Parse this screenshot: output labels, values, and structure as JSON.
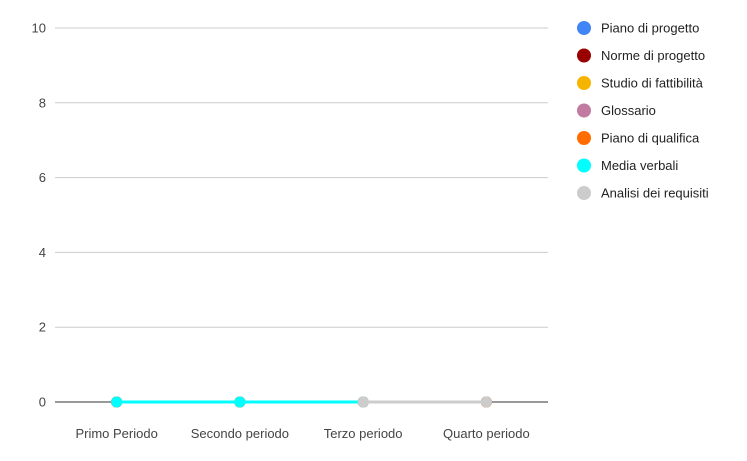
{
  "chart_data": {
    "type": "line",
    "title": "",
    "xlabel": "",
    "ylabel": "",
    "categories": [
      "Primo Periodo",
      "Secondo periodo",
      "Terzo periodo",
      "Quarto periodo"
    ],
    "ylim": [
      0,
      10
    ],
    "yticks": [
      0,
      2,
      4,
      6,
      8,
      10
    ],
    "grid": true,
    "legend_position": "right",
    "series": [
      {
        "name": "Piano di progetto",
        "color": "#4285f4",
        "values": [
          0,
          0,
          0,
          0
        ]
      },
      {
        "name": "Norme di progetto",
        "color": "#990000",
        "values": [
          0,
          0,
          0,
          0
        ]
      },
      {
        "name": "Studio di fattibilità",
        "color": "#f4b400",
        "values": [
          0,
          0,
          0,
          0
        ]
      },
      {
        "name": "Glossario",
        "color": "#c27ba0",
        "values": [
          0,
          0,
          0,
          0
        ]
      },
      {
        "name": "Piano di qualifica",
        "color": "#ff6d01",
        "values": [
          0,
          0,
          0,
          0
        ]
      },
      {
        "name": "Media verbali",
        "color": "#00ffff",
        "values": [
          0,
          0,
          0,
          null
        ]
      },
      {
        "name": "Analisi dei requisiti",
        "color": "#cccccc",
        "values": [
          null,
          null,
          0,
          0
        ]
      }
    ]
  }
}
